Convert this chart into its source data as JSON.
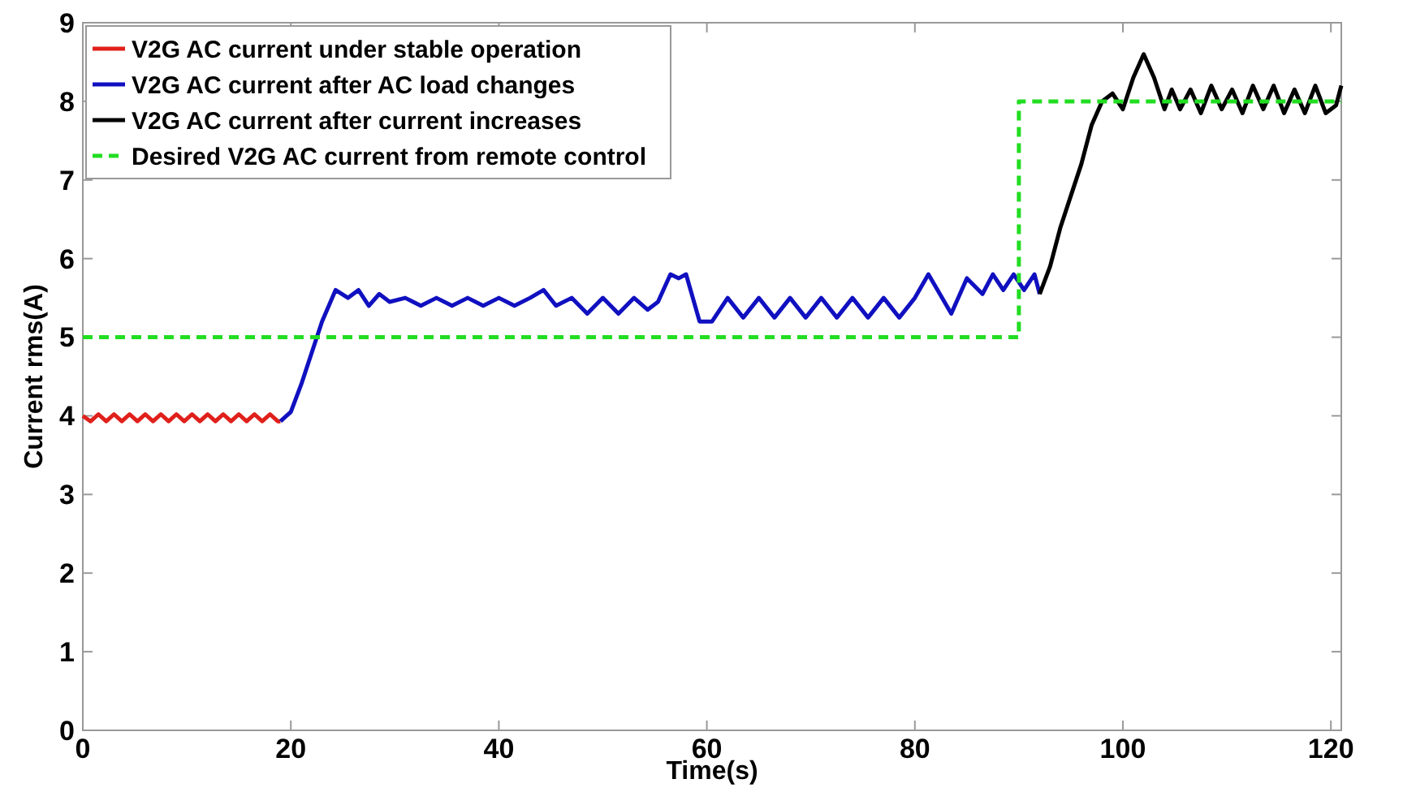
{
  "chart_data": {
    "type": "line",
    "xlabel": "Time(s)",
    "ylabel": "Current rms(A)",
    "xlim": [
      0,
      121
    ],
    "ylim": [
      0,
      9
    ],
    "xticks": [
      0,
      20,
      40,
      60,
      80,
      100,
      120
    ],
    "yticks": [
      0,
      1,
      2,
      3,
      4,
      5,
      6,
      7,
      8,
      9
    ],
    "legend": "top left",
    "grid": false,
    "series": [
      {
        "name": "V2G AC current under stable operation",
        "color": "#e0201b",
        "x": [
          0,
          0.75,
          1.5,
          2.25,
          3,
          3.75,
          4.5,
          5.25,
          6,
          6.75,
          7.5,
          8.25,
          9,
          9.75,
          10.5,
          11.25,
          12,
          12.75,
          13.5,
          14.25,
          15,
          15.75,
          16.5,
          17.25,
          18,
          18.75,
          19
        ],
        "values": [
          4.0,
          3.93,
          4.02,
          3.93,
          4.02,
          3.93,
          4.02,
          3.93,
          4.02,
          3.93,
          4.02,
          3.93,
          4.02,
          3.93,
          4.02,
          3.93,
          4.02,
          3.93,
          4.02,
          3.93,
          4.02,
          3.93,
          4.02,
          3.93,
          4.02,
          3.93,
          3.93
        ]
      },
      {
        "name": "V2G AC current after AC load changes",
        "color": "#1010c0",
        "x": [
          19,
          20,
          21,
          22,
          23,
          24.3,
          25.5,
          26.5,
          27.5,
          28.5,
          29.5,
          31,
          32.5,
          34,
          35.5,
          37,
          38.5,
          40,
          41.5,
          43,
          44.3,
          45.5,
          47,
          48.5,
          50,
          51.5,
          53,
          54.3,
          55.3,
          56.5,
          57.3,
          58,
          59.3,
          60.5,
          62,
          63.5,
          65,
          66.5,
          68,
          69.5,
          71,
          72.5,
          74,
          75.5,
          77,
          78.5,
          80,
          81.3,
          83.5,
          85,
          86.5,
          87.5,
          88.5,
          89.5,
          90.5,
          91.5,
          92
        ],
        "values": [
          3.93,
          4.05,
          4.4,
          4.8,
          5.2,
          5.6,
          5.5,
          5.6,
          5.4,
          5.55,
          5.45,
          5.5,
          5.4,
          5.5,
          5.4,
          5.5,
          5.4,
          5.5,
          5.4,
          5.5,
          5.6,
          5.4,
          5.5,
          5.3,
          5.5,
          5.3,
          5.5,
          5.35,
          5.45,
          5.8,
          5.75,
          5.8,
          5.2,
          5.2,
          5.5,
          5.25,
          5.5,
          5.25,
          5.5,
          5.25,
          5.5,
          5.25,
          5.5,
          5.25,
          5.5,
          5.25,
          5.5,
          5.8,
          5.3,
          5.75,
          5.55,
          5.8,
          5.6,
          5.8,
          5.6,
          5.8,
          5.55
        ]
      },
      {
        "name": "V2G AC current after current increases",
        "color": "#000000",
        "x": [
          92,
          93,
          94,
          95,
          96,
          97,
          98,
          99,
          100,
          101,
          102,
          103,
          104,
          104.7,
          105.5,
          106.5,
          107.5,
          108.5,
          109.5,
          110.5,
          111.5,
          112.5,
          113.5,
          114.5,
          115.5,
          116.5,
          117.5,
          118.5,
          119.5,
          120.5,
          121
        ],
        "values": [
          5.55,
          5.9,
          6.4,
          6.8,
          7.2,
          7.7,
          8.0,
          8.1,
          7.9,
          8.3,
          8.6,
          8.3,
          7.9,
          8.15,
          7.9,
          8.15,
          7.85,
          8.2,
          7.9,
          8.15,
          7.85,
          8.2,
          7.9,
          8.2,
          7.85,
          8.15,
          7.85,
          8.2,
          7.85,
          7.95,
          8.2
        ]
      },
      {
        "name": "Desired V2G AC current from remote control",
        "color": "#22dd22",
        "type": "step",
        "line_style": "dashed",
        "x": [
          0,
          90,
          121
        ],
        "values": [
          5,
          8,
          8
        ]
      }
    ]
  }
}
